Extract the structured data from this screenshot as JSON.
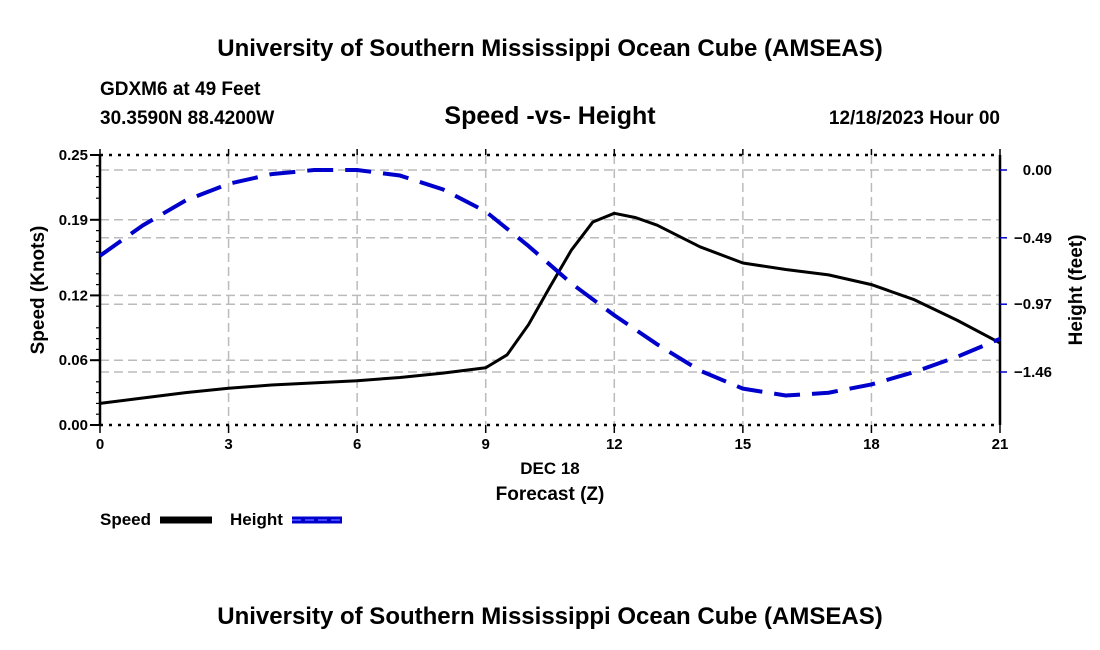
{
  "header": {
    "title": "University of Southern Mississippi Ocean Cube (AMSEAS)",
    "station": "GDXM6 at 49 Feet",
    "coords": "30.3590N  88.4200W",
    "subtitle": "Speed -vs- Height",
    "date": "12/18/2023 Hour 00"
  },
  "footer": {
    "title": "University of Southern Mississippi Ocean Cube (AMSEAS)"
  },
  "chart_data": {
    "type": "line",
    "title": "Speed -vs- Height",
    "xlabel": "Forecast (Z)",
    "xlabel_date": "DEC 18",
    "ylabel": "Speed (Knots)",
    "y2label": "Height (feet)",
    "xlim": [
      0,
      21
    ],
    "ylim": [
      0,
      0.25
    ],
    "y2lim": [
      -1.65,
      0.05
    ],
    "x_ticks": [
      0,
      3,
      6,
      9,
      12,
      15,
      18,
      21
    ],
    "x_tick_labels": [
      "0",
      "3",
      "6",
      "9",
      "12",
      "15",
      "18",
      "21"
    ],
    "y_ticks": [
      0,
      0.06,
      0.12,
      0.19,
      0.25
    ],
    "y_tick_labels": [
      "0.00",
      "0.06",
      "0.12",
      "0.19",
      "0.25"
    ],
    "y2_ticks": [
      0,
      -0.49,
      -0.97,
      -1.46
    ],
    "y2_tick_labels": [
      "0.00",
      "−0.49",
      "−0.97",
      "−1.46"
    ],
    "grid": true,
    "legend": "bottom-left",
    "series": [
      {
        "name": "Speed",
        "axis": "left",
        "color": "#000000",
        "style": "solid",
        "x": [
          0,
          1,
          2,
          3,
          4,
          5,
          6,
          7,
          8,
          9,
          9.5,
          10,
          10.5,
          11,
          11.5,
          12,
          12.5,
          13,
          14,
          15,
          16,
          17,
          18,
          19,
          20,
          21
        ],
        "values": [
          0.02,
          0.025,
          0.03,
          0.034,
          0.037,
          0.039,
          0.041,
          0.044,
          0.048,
          0.053,
          0.065,
          0.093,
          0.128,
          0.162,
          0.188,
          0.196,
          0.192,
          0.185,
          0.165,
          0.15,
          0.144,
          0.139,
          0.13,
          0.116,
          0.097,
          0.076
        ]
      },
      {
        "name": "Height",
        "axis": "right",
        "color": "#0000cc",
        "style": "dashed",
        "x": [
          0,
          1,
          2,
          3,
          4,
          5,
          6,
          7,
          8,
          9,
          10,
          11,
          12,
          13,
          14,
          15,
          16,
          17,
          18,
          19,
          20,
          21
        ],
        "values": [
          -0.62,
          -0.4,
          -0.22,
          -0.1,
          -0.03,
          0.0,
          0.0,
          -0.04,
          -0.14,
          -0.3,
          -0.55,
          -0.82,
          -1.05,
          -1.26,
          -1.45,
          -1.58,
          -1.63,
          -1.61,
          -1.55,
          -1.46,
          -1.35,
          -1.22
        ]
      }
    ]
  }
}
